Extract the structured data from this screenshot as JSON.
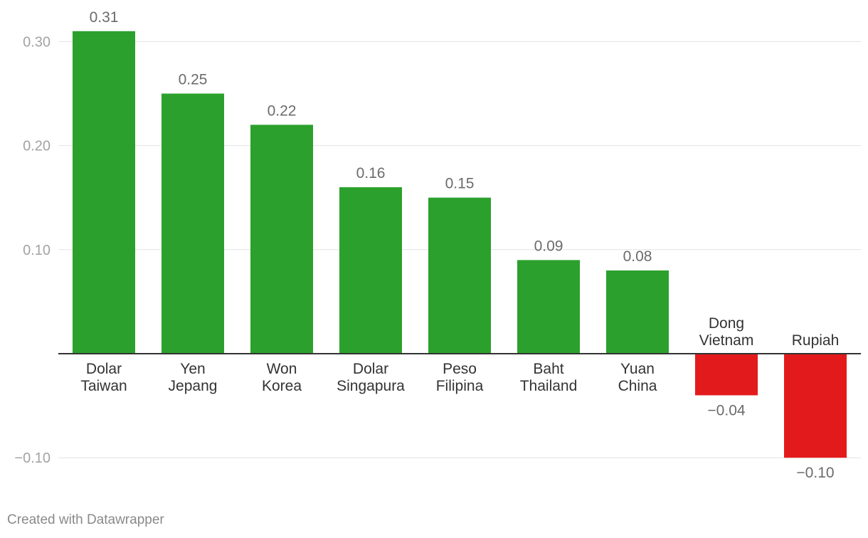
{
  "chart_data": {
    "type": "bar",
    "title": "",
    "xlabel": "",
    "ylabel": "",
    "categories": [
      [
        "Dolar",
        "Taiwan"
      ],
      [
        "Yen",
        "Jepang"
      ],
      [
        "Won",
        "Korea"
      ],
      [
        "Dolar",
        "Singapura"
      ],
      [
        "Peso",
        "Filipina"
      ],
      [
        "Baht",
        "Thailand"
      ],
      [
        "Yuan",
        "China"
      ],
      [
        "Dong",
        "Vietnam"
      ],
      [
        "Rupiah"
      ]
    ],
    "values": [
      0.31,
      0.25,
      0.22,
      0.16,
      0.15,
      0.09,
      0.08,
      -0.04,
      -0.1
    ],
    "value_labels": [
      "0.31",
      "0.25",
      "0.22",
      "0.16",
      "0.15",
      "0.09",
      "0.08",
      "−0.04",
      "−0.10"
    ],
    "yticks": [
      {
        "value": 0.3,
        "label": "0.30"
      },
      {
        "value": 0.2,
        "label": "0.20"
      },
      {
        "value": 0.1,
        "label": "0.10"
      },
      {
        "value": -0.1,
        "label": "−0.10"
      }
    ],
    "ylim": [
      -0.1,
      0.3
    ],
    "grid": true,
    "colors": {
      "positive": "#2ca02c",
      "negative": "#e31a1c",
      "grid": "#e2e2e2",
      "zero_line": "#333333"
    }
  },
  "footer": {
    "credit": "Created with Datawrapper"
  }
}
